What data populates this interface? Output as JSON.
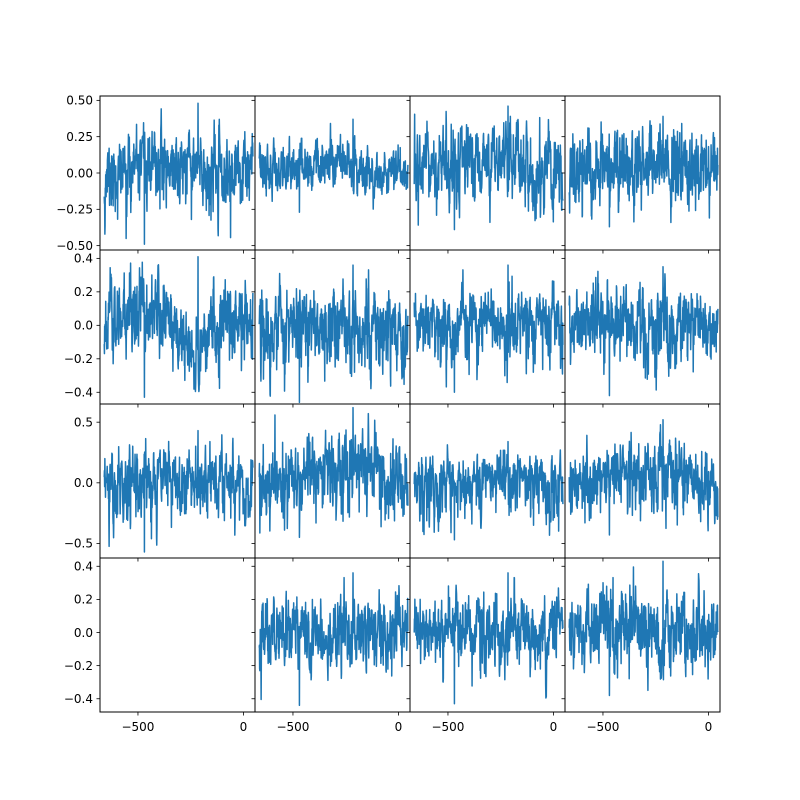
{
  "chart_data": {
    "type": "line",
    "grid": false,
    "layout": {
      "rows": 4,
      "cols": 4
    },
    "color": "#1f77b4",
    "x_range": [
      -680,
      55
    ],
    "x_ticks": [
      -500,
      0
    ],
    "x_tick_labels": [
      "−500",
      "0"
    ],
    "rows": [
      {
        "ylim": [
          -0.53,
          0.53
        ],
        "y_ticks": [
          -0.5,
          -0.25,
          0,
          0.25,
          0.5
        ],
        "y_tick_labels": [
          "−0.50",
          "−0.25",
          "0.00",
          "0.25",
          "0.50"
        ]
      },
      {
        "ylim": [
          -0.47,
          0.45
        ],
        "y_ticks": [
          -0.4,
          -0.2,
          0,
          0.2,
          0.4
        ],
        "y_tick_labels": [
          "−0.4",
          "−0.2",
          "0.0",
          "0.2",
          "0.4"
        ]
      },
      {
        "ylim": [
          -0.62,
          0.65
        ],
        "y_ticks": [
          -0.5,
          0,
          0.5
        ],
        "y_tick_labels": [
          "−0.5",
          "0.0",
          "0.5"
        ]
      },
      {
        "ylim": [
          -0.48,
          0.45
        ],
        "y_ticks": [
          -0.4,
          -0.2,
          0,
          0.2,
          0.4
        ],
        "y_tick_labels": [
          "−0.4",
          "−0.2",
          "0.0",
          "0.2",
          "0.4"
        ]
      }
    ],
    "series": [
      {
        "row": 0,
        "col": 0,
        "x_start": -660,
        "x_end": 45,
        "n": 700,
        "sigma": 0.11,
        "trend": [
          0,
          0.03,
          0.06,
          0.03,
          0,
          0.02
        ],
        "ymin": -0.49,
        "ymax": 0.48,
        "seed": 11
      },
      {
        "row": 0,
        "col": 1,
        "x_start": -660,
        "x_end": 45,
        "n": 700,
        "sigma": 0.09,
        "trend": [
          0,
          0.02,
          0.06,
          0.04,
          -0.02,
          0
        ],
        "ymin": -0.27,
        "ymax": 0.37,
        "seed": 12
      },
      {
        "row": 0,
        "col": 2,
        "x_start": -660,
        "x_end": 45,
        "n": 700,
        "sigma": 0.09,
        "trend": [
          0,
          0.01,
          0.04,
          0.03,
          0,
          -0.01
        ],
        "ymin": -0.39,
        "ymax": 0.46,
        "seed": 13
      },
      {
        "row": 0,
        "col": 3,
        "x_start": -660,
        "x_end": 45,
        "n": 700,
        "sigma": 0.08,
        "trend": [
          0,
          0.02,
          0.03,
          0.02,
          0,
          0
        ],
        "ymin": -0.37,
        "ymax": 0.39,
        "seed": 14
      },
      {
        "row": 1,
        "col": 0,
        "x_start": -660,
        "x_end": 45,
        "n": 700,
        "sigma": 0.08,
        "trend": [
          0,
          0.03,
          0.05,
          -0.12,
          0.03,
          0
        ],
        "ymin": -0.43,
        "ymax": 0.41,
        "seed": 21
      },
      {
        "row": 1,
        "col": 1,
        "x_start": -660,
        "x_end": 45,
        "n": 700,
        "sigma": 0.09,
        "trend": [
          0,
          0,
          0.01,
          -0.01,
          0,
          0
        ],
        "ymin": -0.46,
        "ymax": 0.36,
        "seed": 22
      },
      {
        "row": 1,
        "col": 2,
        "x_start": -660,
        "x_end": 45,
        "n": 700,
        "sigma": 0.09,
        "trend": [
          0,
          0.01,
          0,
          0,
          0.02,
          0
        ],
        "ymin": -0.4,
        "ymax": 0.36,
        "seed": 23
      },
      {
        "row": 1,
        "col": 3,
        "x_start": -660,
        "x_end": 45,
        "n": 700,
        "sigma": 0.1,
        "trend": [
          0,
          0,
          0,
          0,
          0,
          0
        ],
        "ymin": -0.42,
        "ymax": 0.35,
        "seed": 24
      },
      {
        "row": 2,
        "col": 0,
        "x_start": -660,
        "x_end": 45,
        "n": 700,
        "sigma": 0.11,
        "trend": [
          0,
          0,
          0.03,
          0.04,
          0.02,
          0
        ],
        "ymin": -0.57,
        "ymax": 0.43,
        "seed": 31
      },
      {
        "row": 2,
        "col": 1,
        "x_start": -660,
        "x_end": 45,
        "n": 700,
        "sigma": 0.12,
        "trend": [
          0,
          0.02,
          0.05,
          0.08,
          0.03,
          -0.02
        ],
        "ymin": -0.45,
        "ymax": 0.62,
        "seed": 32
      },
      {
        "row": 2,
        "col": 2,
        "x_start": -660,
        "x_end": 45,
        "n": 700,
        "sigma": 0.1,
        "trend": [
          0,
          0,
          0.02,
          0.03,
          0.02,
          0
        ],
        "ymin": -0.47,
        "ymax": 0.34,
        "seed": 33
      },
      {
        "row": 2,
        "col": 3,
        "x_start": -660,
        "x_end": 45,
        "n": 700,
        "sigma": 0.11,
        "trend": [
          0,
          0.02,
          0.04,
          0.03,
          0.01,
          0
        ],
        "ymin": -0.43,
        "ymax": 0.52,
        "seed": 34
      },
      {
        "row": 3,
        "col": 1,
        "x_start": -660,
        "x_end": 45,
        "n": 700,
        "sigma": 0.09,
        "trend": [
          0,
          0,
          0,
          0,
          0,
          0
        ],
        "ymin": -0.44,
        "ymax": 0.36,
        "seed": 42
      },
      {
        "row": 3,
        "col": 2,
        "x_start": -660,
        "x_end": 45,
        "n": 700,
        "sigma": 0.09,
        "trend": [
          0,
          0.01,
          0,
          0,
          0,
          0
        ],
        "ymin": -0.43,
        "ymax": 0.36,
        "seed": 43
      },
      {
        "row": 3,
        "col": 3,
        "x_start": -660,
        "x_end": 45,
        "n": 700,
        "sigma": 0.1,
        "trend": [
          0,
          0.01,
          0.01,
          0,
          0,
          0
        ],
        "ymin": -0.38,
        "ymax": 0.43,
        "seed": 44
      }
    ]
  }
}
